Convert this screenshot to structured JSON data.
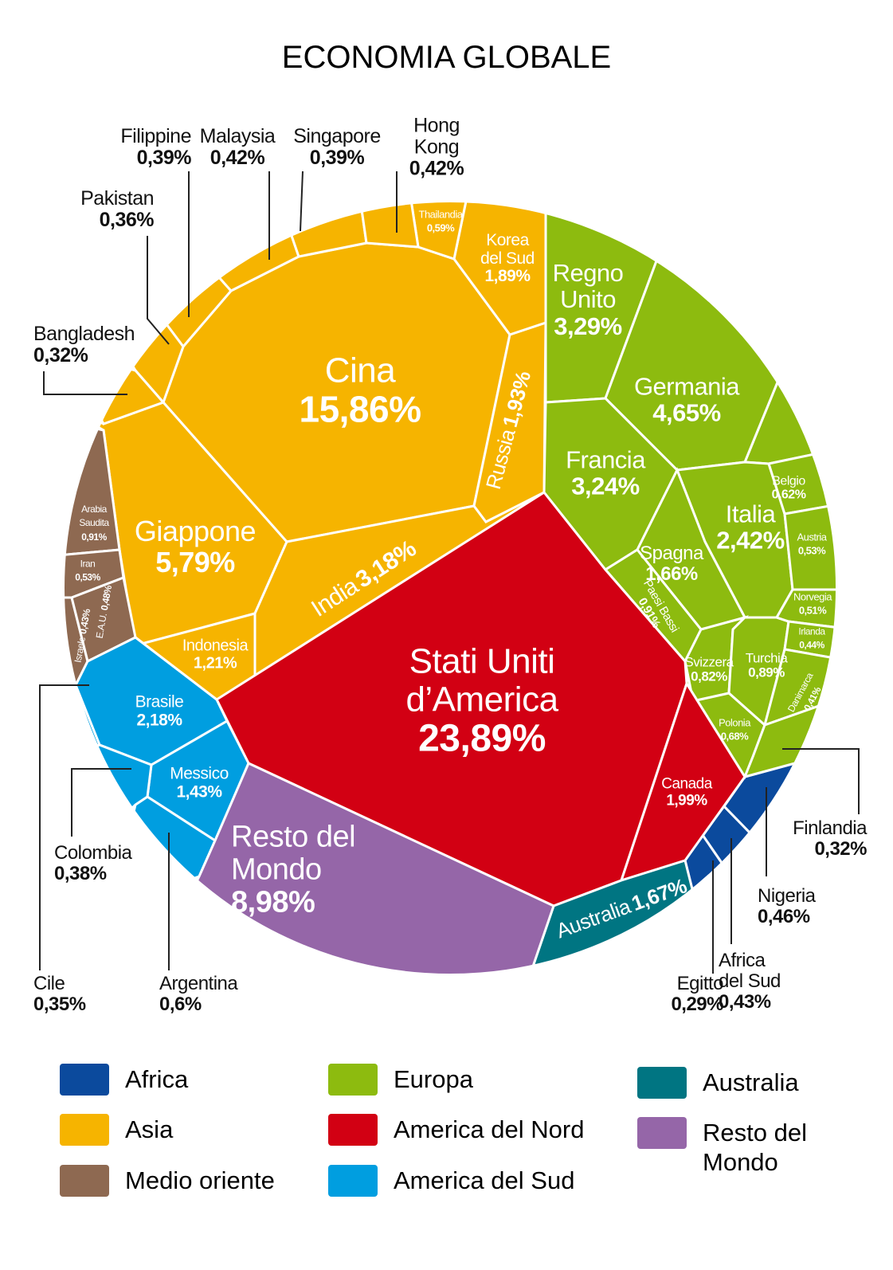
{
  "chart_data": {
    "type": "voronoi-treemap",
    "title": "ECONOMIA GLOBALE",
    "series": [
      {
        "name": "Africa",
        "color": "#0b4a9d",
        "categories": [
          "Egitto",
          "Africa del Sud",
          "Nigeria"
        ],
        "values": [
          0.29,
          0.43,
          0.46
        ],
        "value_labels": [
          "0,29%",
          "0,43%",
          "0,46%"
        ]
      },
      {
        "name": "Asia",
        "color": "#f6b400",
        "categories": [
          "Cina",
          "Giappone",
          "India",
          "Russia",
          "Korea del Sud",
          "Indonesia",
          "Thailandia",
          "Filippine",
          "Malaysia",
          "Singapore",
          "Hong Kong",
          "Pakistan",
          "Bangladesh"
        ],
        "values": [
          15.86,
          5.79,
          3.18,
          1.93,
          1.89,
          1.21,
          0.59,
          0.39,
          0.42,
          0.39,
          0.42,
          0.36,
          0.32
        ],
        "value_labels": [
          "15,86%",
          "5,79%",
          "3,18%",
          "1,93%",
          "1,89%",
          "1,21%",
          "0,59%",
          "0,39%",
          "0,42%",
          "0,39%",
          "0,42%",
          "0,36%",
          "0,32%"
        ]
      },
      {
        "name": "Medio oriente",
        "color": "#8e6951",
        "categories": [
          "Arabia Saudita",
          "Iran",
          "Israele",
          "E.A.U."
        ],
        "values": [
          0.91,
          0.53,
          0.43,
          0.48
        ],
        "value_labels": [
          "0,91%",
          "0,53%",
          "0,43%",
          "0,48%"
        ]
      },
      {
        "name": "Europa",
        "color": "#8dbb0f",
        "categories": [
          "Regno Unito",
          "Germania",
          "Francia",
          "Italia",
          "Spagna",
          "Paesi Bassi",
          "Svizzera",
          "Turchia",
          "Polonia",
          "Belgio",
          "Austria",
          "Norvegia",
          "Irlanda",
          "Danimarca",
          "Finlandia"
        ],
        "values": [
          3.29,
          4.65,
          3.24,
          2.42,
          1.66,
          0.91,
          0.82,
          0.89,
          0.68,
          0.62,
          0.53,
          0.51,
          0.44,
          0.41,
          0.32
        ],
        "value_labels": [
          "3,29%",
          "4,65%",
          "3,24%",
          "2,42%",
          "1,66%",
          "0,91%",
          "0,82%",
          "0,89%",
          "0,68%",
          "0,62%",
          "0,53%",
          "0,51%",
          "0,44%",
          "0,41%",
          "0,32%"
        ]
      },
      {
        "name": "America del Nord",
        "color": "#d20013",
        "categories": [
          "Stati Uniti d’America",
          "Canada"
        ],
        "values": [
          23.89,
          1.99
        ],
        "value_labels": [
          "23,89%",
          "1,99%"
        ]
      },
      {
        "name": "America del Sud",
        "color": "#009ee0",
        "categories": [
          "Brasile",
          "Messico",
          "Argentina",
          "Colombia",
          "Cile"
        ],
        "values": [
          2.18,
          1.43,
          0.6,
          0.38,
          0.35
        ],
        "value_labels": [
          "2,18%",
          "1,43%",
          "0,6%",
          "0,38%",
          "0,35%"
        ]
      },
      {
        "name": "Australia",
        "color": "#007582",
        "categories": [
          "Australia"
        ],
        "values": [
          1.67
        ],
        "value_labels": [
          "1,67%"
        ]
      },
      {
        "name": "Resto del Mondo",
        "color": "#9566a8",
        "categories": [
          "Resto del Mondo"
        ],
        "values": [
          8.98
        ],
        "value_labels": [
          "8,98%"
        ]
      }
    ]
  }
}
